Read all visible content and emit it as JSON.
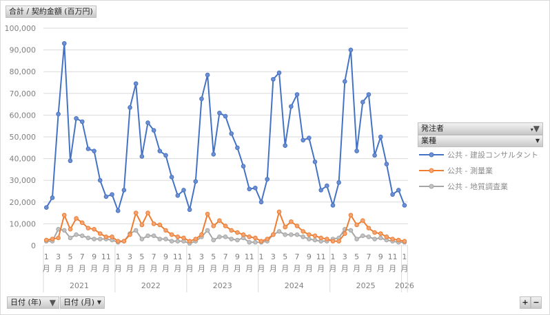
{
  "value_button": "合計 / 契約金額 (百万円)",
  "filters": {
    "orderer": "発注者",
    "industry": "業種",
    "year": "日付 (年)",
    "month": "日付 (月)"
  },
  "zoom": {
    "plus": "+",
    "minus": "−"
  },
  "colors": {
    "blue": "#4472c4",
    "orange": "#ed7d31",
    "gray": "#a5a5a5"
  },
  "chart_data": {
    "type": "line",
    "title": "合計 / 契約金額 (百万円)",
    "ylim": [
      0,
      100000
    ],
    "yticks": [
      0,
      10000,
      20000,
      30000,
      40000,
      50000,
      60000,
      70000,
      80000,
      90000,
      100000
    ],
    "ytick_labels": [
      "0",
      "10,000",
      "20,000",
      "30,000",
      "40,000",
      "50,000",
      "60,000",
      "70,000",
      "80,000",
      "90,000",
      "100,000"
    ],
    "years": [
      "2021",
      "2022",
      "2023",
      "2024",
      "2025",
      "2026"
    ],
    "month_tick_labels": [
      "1",
      "3",
      "5",
      "7",
      "9",
      "11"
    ],
    "month_suffix": "月",
    "legend_position": "right",
    "series": [
      {
        "name": "公共 - 建設コンサルタント",
        "color": "#4472c4",
        "values": [
          17500,
          22000,
          60500,
          93000,
          39000,
          58500,
          57000,
          44500,
          43500,
          30000,
          22500,
          23500,
          16000,
          25500,
          63500,
          74500,
          41000,
          56500,
          53000,
          43500,
          41500,
          31500,
          23000,
          25500,
          16500,
          29500,
          67500,
          78500,
          42000,
          61000,
          59500,
          51500,
          45000,
          36500,
          26000,
          26500,
          20000,
          30500,
          76500,
          79500,
          46000,
          64000,
          69500,
          48500,
          49500,
          38500,
          25500,
          27500,
          18500,
          29000,
          75500,
          90000,
          43500,
          66000,
          69500,
          41500,
          50000,
          37500,
          23500,
          25500,
          18500
        ]
      },
      {
        "name": "公共 - 測量業",
        "color": "#ed7d31",
        "values": [
          2500,
          3000,
          3500,
          14000,
          7500,
          12500,
          10500,
          8000,
          7500,
          5500,
          4000,
          4000,
          2000,
          2000,
          5000,
          15000,
          9500,
          15000,
          10000,
          9500,
          7000,
          5000,
          4000,
          3500,
          2000,
          3000,
          5000,
          14500,
          9000,
          11500,
          9000,
          7000,
          6000,
          5000,
          4000,
          3500,
          2000,
          3000,
          5000,
          15500,
          8500,
          11000,
          9000,
          6500,
          5000,
          4500,
          3500,
          3000,
          2000,
          2000,
          5500,
          14000,
          9500,
          11500,
          8000,
          6000,
          5500,
          4000,
          3000,
          2500,
          2000
        ]
      },
      {
        "name": "公共 - 地質調査業",
        "color": "#a5a5a5",
        "values": [
          2000,
          2000,
          7500,
          7000,
          3500,
          5000,
          4500,
          3500,
          3000,
          3000,
          3000,
          2500,
          1500,
          2000,
          5500,
          7000,
          3000,
          4500,
          4500,
          3000,
          3000,
          2000,
          2000,
          2000,
          1000,
          2000,
          4000,
          7000,
          2500,
          4000,
          4000,
          3000,
          2500,
          3500,
          1500,
          1500,
          1500,
          2000,
          5000,
          6500,
          5000,
          5000,
          5000,
          4000,
          3000,
          2500,
          2000,
          2000,
          3000,
          3500,
          7500,
          7000,
          3000,
          4500,
          4000,
          3000,
          3500,
          2500,
          2000,
          1500,
          1500
        ]
      }
    ]
  }
}
